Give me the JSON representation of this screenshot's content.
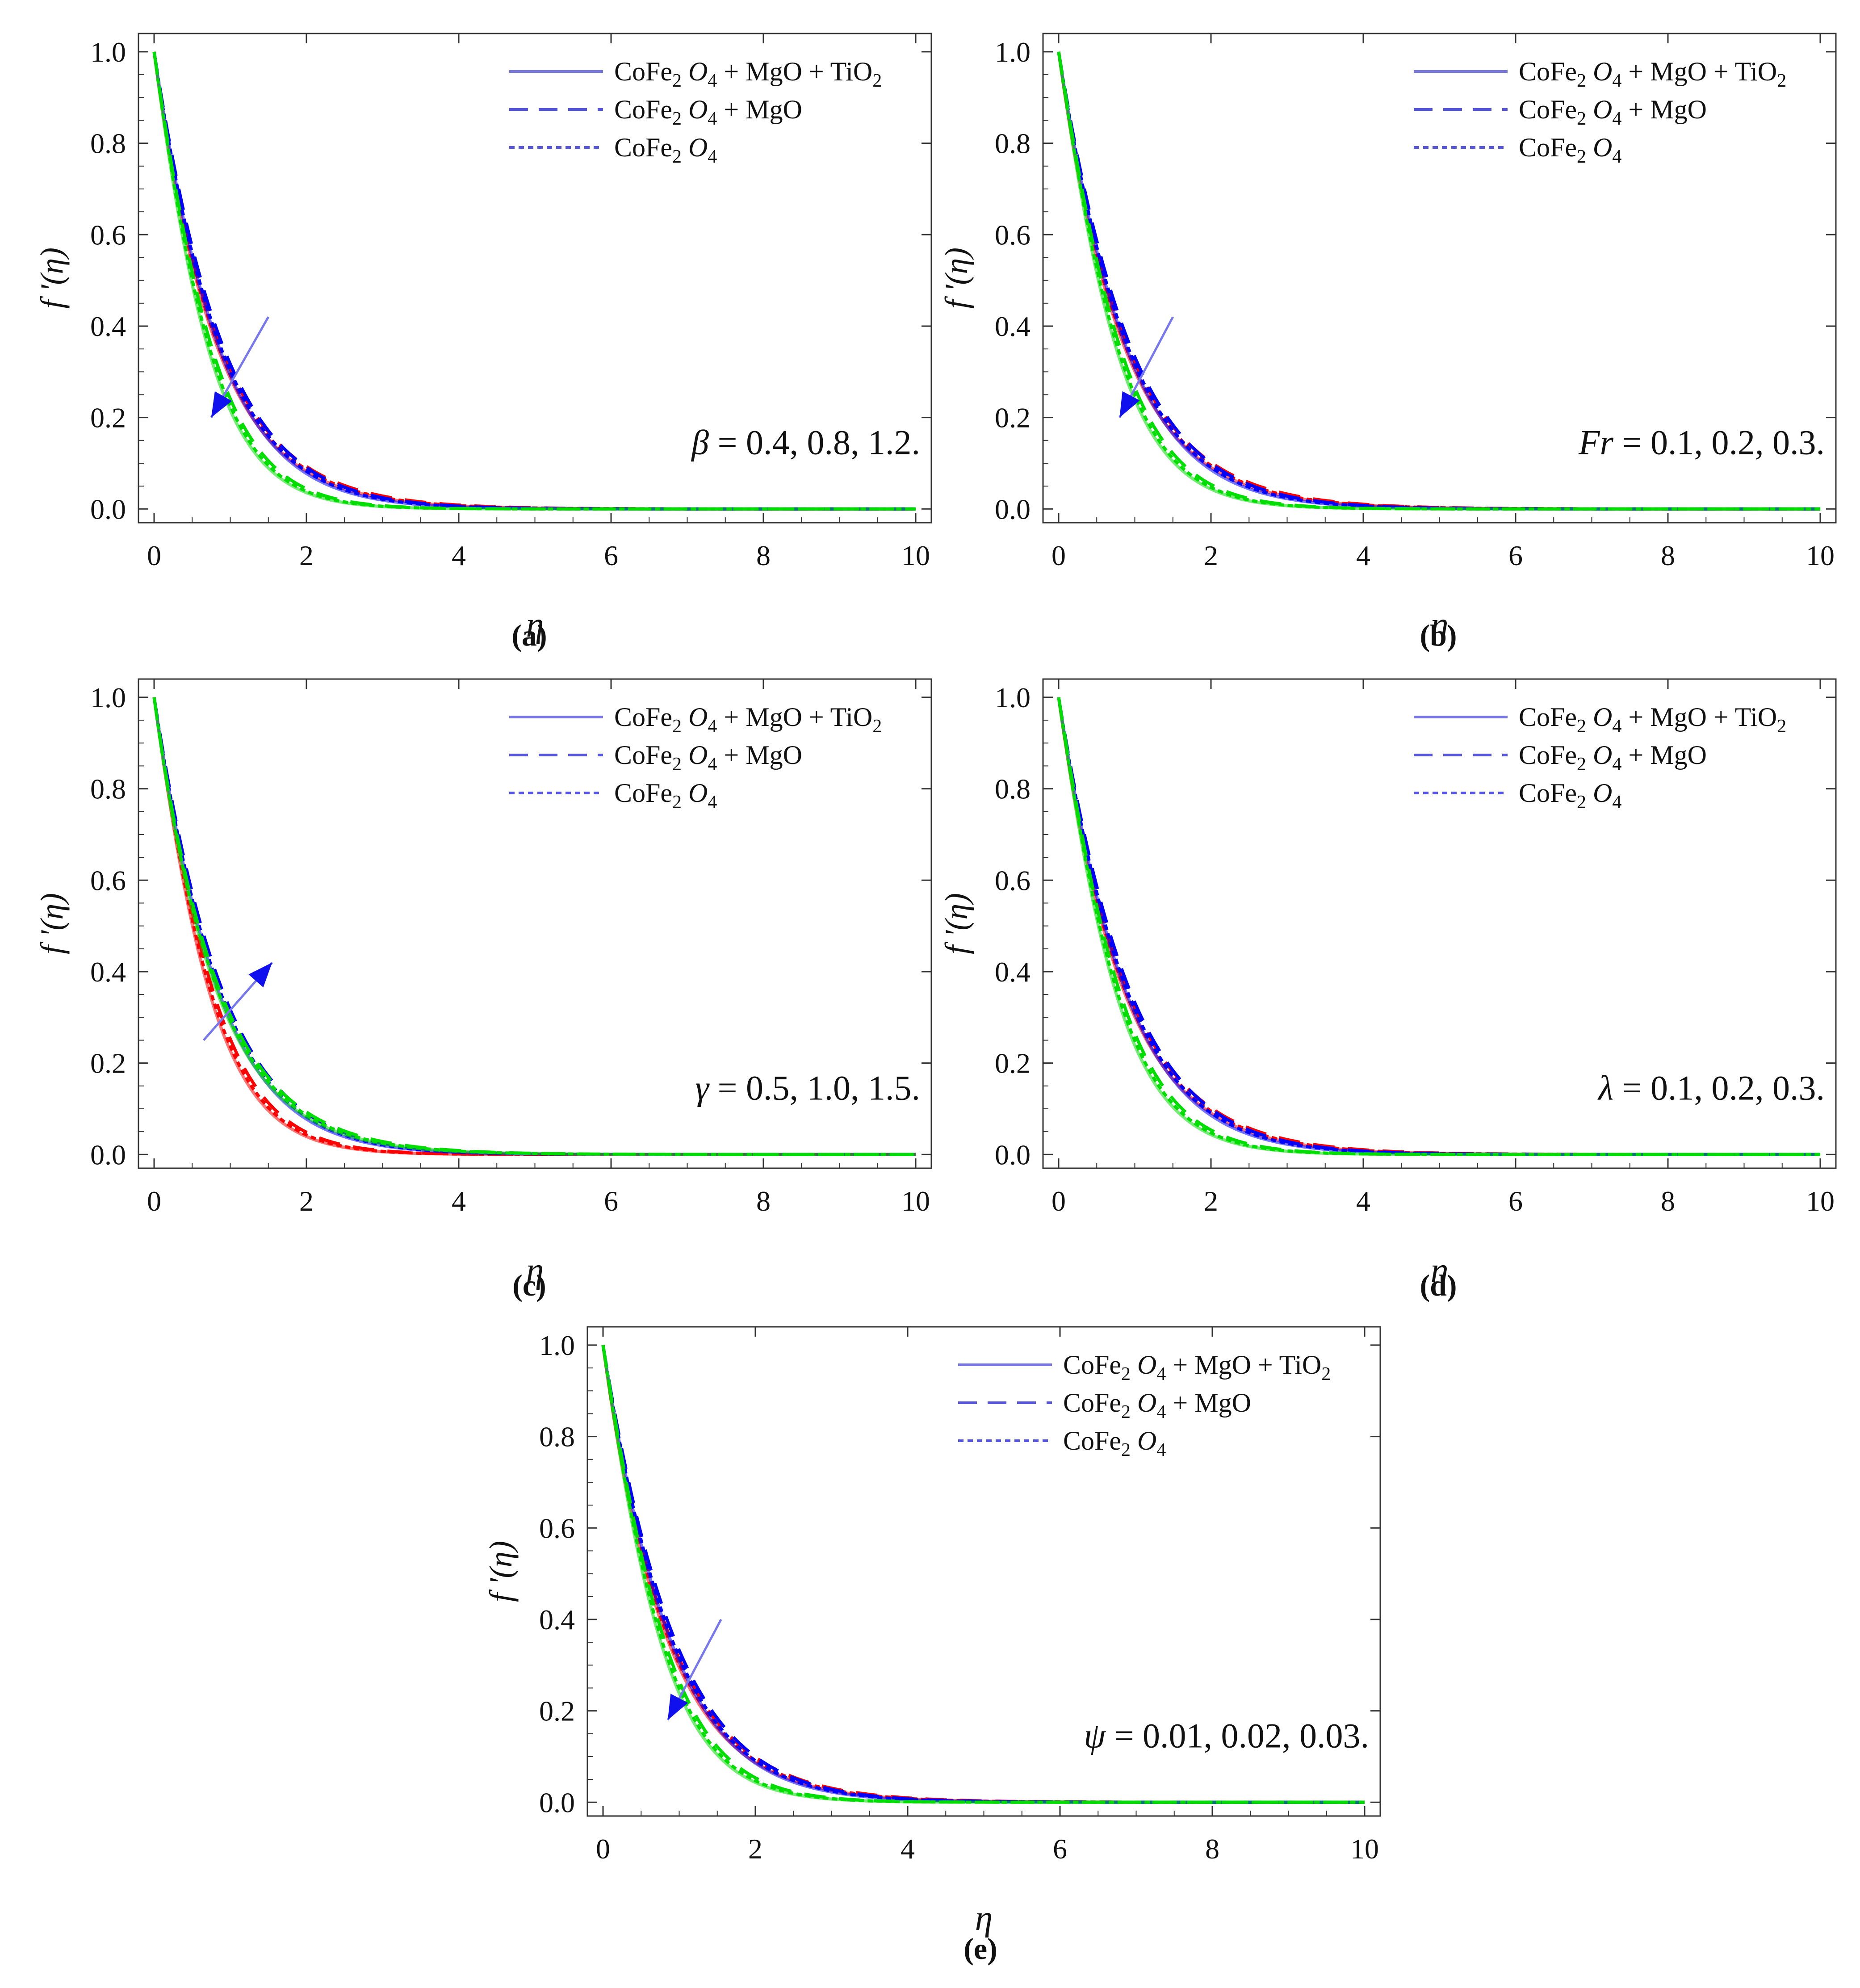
{
  "colors": {
    "red": "#ff0000",
    "green": "#00dd00",
    "blue": "#0000ff",
    "legend_blue": "#5555dd",
    "arrow_blue": "#1010ee"
  },
  "legend": {
    "items": [
      {
        "label_parts": [
          "CoFe",
          "2",
          " O",
          "4",
          " + MgO + TiO",
          "2"
        ],
        "style": "solid"
      },
      {
        "label_parts": [
          "CoFe",
          "2",
          " O",
          "4",
          " + MgO"
        ],
        "style": "dashed"
      },
      {
        "label_parts": [
          "CoFe",
          "2",
          " O",
          "4"
        ],
        "style": "dotted"
      }
    ]
  },
  "chart_data": [
    {
      "type": "line",
      "panel_label": "(a)",
      "xlabel": "η",
      "ylabel": "f '(η)",
      "xlim": [
        0,
        10
      ],
      "ylim": [
        -0.03,
        1.04
      ],
      "xticks": [
        0,
        2,
        4,
        6,
        8,
        10
      ],
      "yticks": [
        0.0,
        0.2,
        0.4,
        0.6,
        0.8,
        1.0
      ],
      "ytick_labels": [
        "0.0",
        "0.2",
        "0.4",
        "0.6",
        "0.8",
        "1.0"
      ],
      "annotation_symbol": "β",
      "annotation_values": " = 0.4, 0.8, 1.2.",
      "arrow": {
        "from": [
          1.5,
          0.42
        ],
        "to": [
          0.75,
          0.2
        ],
        "direction": "decreasing"
      },
      "series_params": {
        "red": {
          "k": 1.25,
          "a": 0.0
        },
        "blue": {
          "k": 1.6,
          "a": 0.45
        },
        "green": {
          "k": 2.2,
          "a": 0.95
        }
      }
    },
    {
      "type": "line",
      "panel_label": "(b)",
      "xlabel": "η",
      "ylabel": "f '(η)",
      "xlim": [
        0,
        10
      ],
      "ylim": [
        -0.03,
        1.04
      ],
      "xticks": [
        0,
        2,
        4,
        6,
        8,
        10
      ],
      "yticks": [
        0.0,
        0.2,
        0.4,
        0.6,
        0.8,
        1.0
      ],
      "ytick_labels": [
        "0.0",
        "0.2",
        "0.4",
        "0.6",
        "0.8",
        "1.0"
      ],
      "annotation_symbol": "Fr",
      "annotation_values": " = 0.1, 0.2, 0.3.",
      "arrow": {
        "from": [
          1.5,
          0.42
        ],
        "to": [
          0.8,
          0.2
        ],
        "direction": "decreasing"
      },
      "series_params": {
        "red": {
          "k": 1.2,
          "a": 0.0
        },
        "blue": {
          "k": 1.55,
          "a": 0.45
        },
        "green": {
          "k": 2.1,
          "a": 0.95
        }
      }
    },
    {
      "type": "line",
      "panel_label": "(c)",
      "xlabel": "η",
      "ylabel": "f '(η)",
      "xlim": [
        0,
        10
      ],
      "ylim": [
        -0.03,
        1.04
      ],
      "xticks": [
        0,
        2,
        4,
        6,
        8,
        10
      ],
      "yticks": [
        0.0,
        0.2,
        0.4,
        0.6,
        0.8,
        1.0
      ],
      "ytick_labels": [
        "0.0",
        "0.2",
        "0.4",
        "0.6",
        "0.8",
        "1.0"
      ],
      "annotation_symbol": "γ",
      "annotation_values": " = 0.5, 1.0, 1.5.",
      "arrow": {
        "from": [
          0.65,
          0.25
        ],
        "to": [
          1.55,
          0.42
        ],
        "direction": "increasing"
      },
      "series_params": {
        "red": {
          "k": 2.15,
          "a": 0.95
        },
        "blue": {
          "k": 1.6,
          "a": 0.45
        },
        "green": {
          "k": 1.25,
          "a": 0.0
        }
      }
    },
    {
      "type": "line",
      "panel_label": "(d)",
      "xlabel": "η",
      "ylabel": "f '(η)",
      "xlim": [
        0,
        10
      ],
      "ylim": [
        -0.03,
        1.04
      ],
      "xticks": [
        0,
        2,
        4,
        6,
        8,
        10
      ],
      "yticks": [
        0.0,
        0.2,
        0.4,
        0.6,
        0.8,
        1.0
      ],
      "ytick_labels": [
        "0.0",
        "0.2",
        "0.4",
        "0.6",
        "0.8",
        "1.0"
      ],
      "annotation_symbol": "λ",
      "annotation_values": " = 0.1, 0.2, 0.3.",
      "arrow": null,
      "series_params": {
        "red": {
          "k": 1.2,
          "a": 0.0
        },
        "blue": {
          "k": 1.55,
          "a": 0.45
        },
        "green": {
          "k": 2.1,
          "a": 0.95
        }
      }
    },
    {
      "type": "line",
      "panel_label": "(e)",
      "xlabel": "η",
      "ylabel": "f '(η)",
      "xlim": [
        0,
        10
      ],
      "ylim": [
        -0.03,
        1.04
      ],
      "xticks": [
        0,
        2,
        4,
        6,
        8,
        10
      ],
      "yticks": [
        0.0,
        0.2,
        0.4,
        0.6,
        0.8,
        1.0
      ],
      "ytick_labels": [
        "0.0",
        "0.2",
        "0.4",
        "0.6",
        "0.8",
        "1.0"
      ],
      "annotation_symbol": "ψ",
      "annotation_values": " = 0.01, 0.02, 0.03.",
      "arrow": {
        "from": [
          1.55,
          0.4
        ],
        "to": [
          0.85,
          0.18
        ],
        "direction": "decreasing"
      },
      "series_params": {
        "red": {
          "k": 1.22,
          "a": 0.0
        },
        "blue": {
          "k": 1.55,
          "a": 0.45
        },
        "green": {
          "k": 2.1,
          "a": 0.95
        }
      }
    }
  ]
}
